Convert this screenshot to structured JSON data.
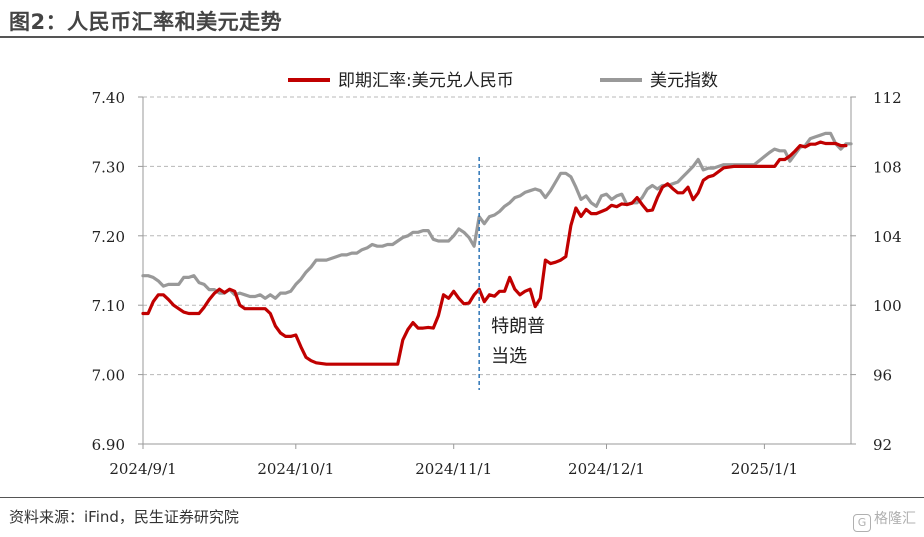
{
  "figure": {
    "title": "图2：人民币汇率和美元走势",
    "source": "资料来源：iFind，民生证券研究院",
    "watermark": "格隆汇"
  },
  "chart_data": {
    "type": "line",
    "xlabel": "",
    "ylabel": "",
    "x_ticks": [
      "2024/9/1",
      "2024/10/1",
      "2024/11/1",
      "2024/12/1",
      "2025/1/1"
    ],
    "x_range": [
      "2024-09-01",
      "2025-01-18"
    ],
    "y_left": {
      "ylim": [
        6.9,
        7.4
      ],
      "ticks": [
        "6.90",
        "7.00",
        "7.10",
        "7.20",
        "7.30",
        "7.40"
      ]
    },
    "y_right": {
      "ylim": [
        92,
        112
      ],
      "ticks": [
        "92",
        "96",
        "100",
        "104",
        "108",
        "112"
      ]
    },
    "grid": "horizontal dashed",
    "legend": "top-center",
    "annotation": {
      "text_line1": "特朗普",
      "text_line2": "当选",
      "date": "2024-11-06"
    },
    "series": [
      {
        "name": "即期汇率:美元兑人民币",
        "axis": "left",
        "color": "#c00000",
        "points": [
          [
            "2024-09-01",
            7.088
          ],
          [
            "2024-09-02",
            7.088
          ],
          [
            "2024-09-03",
            7.105
          ],
          [
            "2024-09-04",
            7.115
          ],
          [
            "2024-09-05",
            7.115
          ],
          [
            "2024-09-06",
            7.108
          ],
          [
            "2024-09-07",
            7.1
          ],
          [
            "2024-09-08",
            7.095
          ],
          [
            "2024-09-09",
            7.09
          ],
          [
            "2024-09-10",
            7.088
          ],
          [
            "2024-09-12",
            7.088
          ],
          [
            "2024-09-13",
            7.097
          ],
          [
            "2024-09-14",
            7.108
          ],
          [
            "2024-09-15",
            7.117
          ],
          [
            "2024-09-16",
            7.123
          ],
          [
            "2024-09-17",
            7.118
          ],
          [
            "2024-09-18",
            7.123
          ],
          [
            "2024-09-19",
            7.12
          ],
          [
            "2024-09-20",
            7.1
          ],
          [
            "2024-09-21",
            7.095
          ],
          [
            "2024-09-23",
            7.095
          ],
          [
            "2024-09-25",
            7.095
          ],
          [
            "2024-09-26",
            7.088
          ],
          [
            "2024-09-27",
            7.07
          ],
          [
            "2024-09-28",
            7.06
          ],
          [
            "2024-09-29",
            7.055
          ],
          [
            "2024-09-30",
            7.055
          ],
          [
            "2024-10-01",
            7.057
          ],
          [
            "2024-10-02",
            7.04
          ],
          [
            "2024-10-03",
            7.025
          ],
          [
            "2024-10-04",
            7.02
          ],
          [
            "2024-10-05",
            7.017
          ],
          [
            "2024-10-07",
            7.015
          ],
          [
            "2024-10-09",
            7.015
          ],
          [
            "2024-10-12",
            7.015
          ],
          [
            "2024-10-15",
            7.015
          ],
          [
            "2024-10-18",
            7.015
          ],
          [
            "2024-10-20",
            7.015
          ],
          [
            "2024-10-21",
            7.015
          ],
          [
            "2024-10-22",
            7.05
          ],
          [
            "2024-10-23",
            7.065
          ],
          [
            "2024-10-24",
            7.075
          ],
          [
            "2024-10-25",
            7.067
          ],
          [
            "2024-10-26",
            7.067
          ],
          [
            "2024-10-27",
            7.068
          ],
          [
            "2024-10-28",
            7.067
          ],
          [
            "2024-10-29",
            7.085
          ],
          [
            "2024-10-30",
            7.115
          ],
          [
            "2024-10-31",
            7.11
          ],
          [
            "2024-11-01",
            7.12
          ],
          [
            "2024-11-02",
            7.11
          ],
          [
            "2024-11-03",
            7.102
          ],
          [
            "2024-11-04",
            7.103
          ],
          [
            "2024-11-05",
            7.115
          ],
          [
            "2024-11-06",
            7.123
          ],
          [
            "2024-11-07",
            7.105
          ],
          [
            "2024-11-08",
            7.115
          ],
          [
            "2024-11-09",
            7.113
          ],
          [
            "2024-11-10",
            7.12
          ],
          [
            "2024-11-11",
            7.12
          ],
          [
            "2024-11-12",
            7.14
          ],
          [
            "2024-11-13",
            7.123
          ],
          [
            "2024-11-14",
            7.115
          ],
          [
            "2024-11-15",
            7.12
          ],
          [
            "2024-11-16",
            7.123
          ],
          [
            "2024-11-17",
            7.098
          ],
          [
            "2024-11-18",
            7.11
          ],
          [
            "2024-11-19",
            7.165
          ],
          [
            "2024-11-20",
            7.16
          ],
          [
            "2024-11-21",
            7.162
          ],
          [
            "2024-11-22",
            7.165
          ],
          [
            "2024-11-23",
            7.17
          ],
          [
            "2024-11-24",
            7.215
          ],
          [
            "2024-11-25",
            7.24
          ],
          [
            "2024-11-26",
            7.228
          ],
          [
            "2024-11-27",
            7.238
          ],
          [
            "2024-11-28",
            7.232
          ],
          [
            "2024-11-29",
            7.232
          ],
          [
            "2024-12-01",
            7.238
          ],
          [
            "2024-12-02",
            7.244
          ],
          [
            "2024-12-03",
            7.242
          ],
          [
            "2024-12-04",
            7.246
          ],
          [
            "2024-12-05",
            7.245
          ],
          [
            "2024-12-06",
            7.247
          ],
          [
            "2024-12-07",
            7.255
          ],
          [
            "2024-12-08",
            7.245
          ],
          [
            "2024-12-09",
            7.236
          ],
          [
            "2024-12-10",
            7.237
          ],
          [
            "2024-12-11",
            7.255
          ],
          [
            "2024-12-12",
            7.27
          ],
          [
            "2024-12-13",
            7.275
          ],
          [
            "2024-12-14",
            7.268
          ],
          [
            "2024-12-15",
            7.262
          ],
          [
            "2024-12-16",
            7.262
          ],
          [
            "2024-12-17",
            7.27
          ],
          [
            "2024-12-18",
            7.252
          ],
          [
            "2024-12-19",
            7.262
          ],
          [
            "2024-12-20",
            7.28
          ],
          [
            "2024-12-21",
            7.285
          ],
          [
            "2024-12-22",
            7.287
          ],
          [
            "2024-12-24",
            7.298
          ],
          [
            "2024-12-26",
            7.3
          ],
          [
            "2024-12-30",
            7.3
          ],
          [
            "2025-01-02",
            7.3
          ],
          [
            "2025-01-03",
            7.3
          ],
          [
            "2025-01-04",
            7.31
          ],
          [
            "2025-01-05",
            7.31
          ],
          [
            "2025-01-06",
            7.315
          ],
          [
            "2025-01-07",
            7.322
          ],
          [
            "2025-01-08",
            7.33
          ],
          [
            "2025-01-09",
            7.328
          ],
          [
            "2025-01-10",
            7.332
          ],
          [
            "2025-01-11",
            7.332
          ],
          [
            "2025-01-12",
            7.335
          ],
          [
            "2025-01-13",
            7.333
          ],
          [
            "2025-01-14",
            7.333
          ],
          [
            "2025-01-15",
            7.333
          ],
          [
            "2025-01-16",
            7.33
          ],
          [
            "2025-01-17",
            7.33
          ]
        ]
      },
      {
        "name": "美元指数",
        "axis": "right",
        "color": "#999999",
        "points": [
          [
            "2024-09-01",
            101.7
          ],
          [
            "2024-09-02",
            101.7
          ],
          [
            "2024-09-03",
            101.6
          ],
          [
            "2024-09-04",
            101.4
          ],
          [
            "2024-09-05",
            101.1
          ],
          [
            "2024-09-06",
            101.2
          ],
          [
            "2024-09-07",
            101.2
          ],
          [
            "2024-09-08",
            101.2
          ],
          [
            "2024-09-09",
            101.6
          ],
          [
            "2024-09-10",
            101.6
          ],
          [
            "2024-09-11",
            101.7
          ],
          [
            "2024-09-12",
            101.3
          ],
          [
            "2024-09-13",
            101.2
          ],
          [
            "2024-09-14",
            100.9
          ],
          [
            "2024-09-15",
            100.9
          ],
          [
            "2024-09-16",
            100.7
          ],
          [
            "2024-09-17",
            100.7
          ],
          [
            "2024-09-18",
            100.9
          ],
          [
            "2024-09-19",
            100.6
          ],
          [
            "2024-09-20",
            100.7
          ],
          [
            "2024-09-21",
            100.6
          ],
          [
            "2024-09-22",
            100.5
          ],
          [
            "2024-09-23",
            100.5
          ],
          [
            "2024-09-24",
            100.6
          ],
          [
            "2024-09-25",
            100.4
          ],
          [
            "2024-09-26",
            100.6
          ],
          [
            "2024-09-27",
            100.4
          ],
          [
            "2024-09-28",
            100.7
          ],
          [
            "2024-09-29",
            100.7
          ],
          [
            "2024-09-30",
            100.8
          ],
          [
            "2024-10-01",
            101.2
          ],
          [
            "2024-10-02",
            101.5
          ],
          [
            "2024-10-03",
            101.9
          ],
          [
            "2024-10-04",
            102.2
          ],
          [
            "2024-10-05",
            102.6
          ],
          [
            "2024-10-07",
            102.6
          ],
          [
            "2024-10-09",
            102.8
          ],
          [
            "2024-10-10",
            102.9
          ],
          [
            "2024-10-11",
            102.9
          ],
          [
            "2024-10-12",
            103.0
          ],
          [
            "2024-10-13",
            103.0
          ],
          [
            "2024-10-14",
            103.2
          ],
          [
            "2024-10-15",
            103.3
          ],
          [
            "2024-10-16",
            103.5
          ],
          [
            "2024-10-17",
            103.4
          ],
          [
            "2024-10-18",
            103.4
          ],
          [
            "2024-10-19",
            103.5
          ],
          [
            "2024-10-20",
            103.5
          ],
          [
            "2024-10-21",
            103.7
          ],
          [
            "2024-10-22",
            103.9
          ],
          [
            "2024-10-23",
            104.0
          ],
          [
            "2024-10-24",
            104.2
          ],
          [
            "2024-10-25",
            104.2
          ],
          [
            "2024-10-26",
            104.3
          ],
          [
            "2024-10-27",
            104.3
          ],
          [
            "2024-10-28",
            103.8
          ],
          [
            "2024-10-29",
            103.7
          ],
          [
            "2024-10-30",
            103.7
          ],
          [
            "2024-10-31",
            103.7
          ],
          [
            "2024-11-01",
            104.0
          ],
          [
            "2024-11-02",
            104.4
          ],
          [
            "2024-11-03",
            104.2
          ],
          [
            "2024-11-04",
            103.9
          ],
          [
            "2024-11-05",
            103.4
          ],
          [
            "2024-11-06",
            105.1
          ],
          [
            "2024-11-07",
            104.7
          ],
          [
            "2024-11-08",
            105.1
          ],
          [
            "2024-11-09",
            105.2
          ],
          [
            "2024-11-10",
            105.4
          ],
          [
            "2024-11-11",
            105.7
          ],
          [
            "2024-11-12",
            105.9
          ],
          [
            "2024-11-13",
            106.2
          ],
          [
            "2024-11-14",
            106.3
          ],
          [
            "2024-11-15",
            106.5
          ],
          [
            "2024-11-16",
            106.6
          ],
          [
            "2024-11-17",
            106.7
          ],
          [
            "2024-11-18",
            106.6
          ],
          [
            "2024-11-19",
            106.2
          ],
          [
            "2024-11-20",
            106.6
          ],
          [
            "2024-11-21",
            107.1
          ],
          [
            "2024-11-22",
            107.6
          ],
          [
            "2024-11-23",
            107.6
          ],
          [
            "2024-11-24",
            107.4
          ],
          [
            "2024-11-25",
            106.8
          ],
          [
            "2024-11-26",
            106.1
          ],
          [
            "2024-11-27",
            106.3
          ],
          [
            "2024-11-28",
            105.9
          ],
          [
            "2024-11-29",
            105.7
          ],
          [
            "2024-11-30",
            106.3
          ],
          [
            "2024-12-01",
            106.4
          ],
          [
            "2024-12-02",
            106.1
          ],
          [
            "2024-12-03",
            106.3
          ],
          [
            "2024-12-04",
            106.4
          ],
          [
            "2024-12-05",
            105.8
          ],
          [
            "2024-12-06",
            105.9
          ],
          [
            "2024-12-07",
            105.9
          ],
          [
            "2024-12-08",
            106.2
          ],
          [
            "2024-12-09",
            106.7
          ],
          [
            "2024-12-10",
            106.9
          ],
          [
            "2024-12-11",
            106.7
          ],
          [
            "2024-12-12",
            106.9
          ],
          [
            "2024-12-13",
            106.9
          ],
          [
            "2024-12-14",
            107.0
          ],
          [
            "2024-12-15",
            107.1
          ],
          [
            "2024-12-16",
            107.4
          ],
          [
            "2024-12-17",
            107.7
          ],
          [
            "2024-12-18",
            108.0
          ],
          [
            "2024-12-19",
            108.4
          ],
          [
            "2024-12-20",
            107.8
          ],
          [
            "2024-12-21",
            107.9
          ],
          [
            "2024-12-22",
            107.9
          ],
          [
            "2024-12-23",
            108.0
          ],
          [
            "2024-12-24",
            108.1
          ],
          [
            "2024-12-26",
            108.1
          ],
          [
            "2024-12-30",
            108.1
          ],
          [
            "2025-01-02",
            108.8
          ],
          [
            "2025-01-03",
            109.0
          ],
          [
            "2025-01-04",
            108.9
          ],
          [
            "2025-01-05",
            108.9
          ],
          [
            "2025-01-06",
            108.3
          ],
          [
            "2025-01-07",
            108.7
          ],
          [
            "2025-01-08",
            109.1
          ],
          [
            "2025-01-09",
            109.2
          ],
          [
            "2025-01-10",
            109.6
          ],
          [
            "2025-01-11",
            109.7
          ],
          [
            "2025-01-12",
            109.8
          ],
          [
            "2025-01-13",
            109.9
          ],
          [
            "2025-01-14",
            109.9
          ],
          [
            "2025-01-15",
            109.3
          ],
          [
            "2025-01-16",
            109.0
          ],
          [
            "2025-01-17",
            109.3
          ],
          [
            "2025-01-18",
            109.3
          ]
        ]
      }
    ]
  }
}
